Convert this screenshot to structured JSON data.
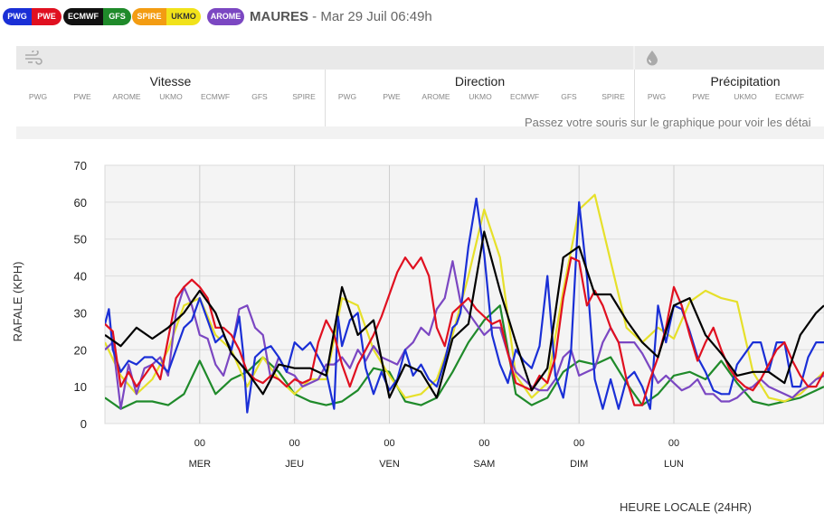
{
  "models": [
    {
      "id": "pwg-pwe",
      "parts": [
        {
          "label": "PWG",
          "bg": "#1a2fd6",
          "fg": "#ffffff"
        },
        {
          "label": "PWE",
          "bg": "#e01020",
          "fg": "#ffffff"
        }
      ]
    },
    {
      "id": "ecmwf-gfs",
      "parts": [
        {
          "label": "ECMWF",
          "bg": "#111111",
          "fg": "#ffffff"
        },
        {
          "label": "GFS",
          "bg": "#1f8a2a",
          "fg": "#ffffff"
        }
      ]
    },
    {
      "id": "spire-ukmo",
      "parts": [
        {
          "label": "SPIRE",
          "bg": "#f39c12",
          "fg": "#ffffff"
        },
        {
          "label": "UKMO",
          "bg": "#f1e21a",
          "fg": "#333333"
        }
      ]
    },
    {
      "id": "arome",
      "parts": [
        {
          "label": "AROME",
          "bg": "#7b47c2",
          "fg": "#ffffff"
        }
      ]
    }
  ],
  "location": {
    "name": "MAURES",
    "sep": " - ",
    "datetime": "Mar 29 Juil 06:49h"
  },
  "icons": {
    "wind": "wind-icon",
    "rain": "droplet-icon"
  },
  "groups": [
    {
      "title": "Vitesse",
      "cols": [
        "PWG",
        "PWE",
        "AROME",
        "UKMO",
        "ECMWF",
        "GFS",
        "SPIRE"
      ]
    },
    {
      "title": "Direction",
      "cols": [
        "PWG",
        "PWE",
        "AROME",
        "UKMO",
        "ECMWF",
        "GFS",
        "SPIRE"
      ]
    },
    {
      "title": "Précipitation",
      "cols": [
        "PWG",
        "PWE",
        "UKMO",
        "ECMWF"
      ]
    }
  ],
  "hint": "Passez votre souris sur le graphique pour voir les détai",
  "chart_data": {
    "type": "line",
    "ylabel": "RAFALE (KPH)",
    "xlabel": "HEURE LOCALE (24HR)",
    "ylim": [
      0,
      70
    ],
    "yticks": [
      0,
      10,
      20,
      30,
      40,
      50,
      60,
      70
    ],
    "xlim": [
      -24,
      158
    ],
    "days": [
      {
        "t": 0,
        "hour": "00",
        "day": "MER"
      },
      {
        "t": 24,
        "hour": "00",
        "day": "JEU"
      },
      {
        "t": 48,
        "hour": "00",
        "day": "VEN"
      },
      {
        "t": 72,
        "hour": "00",
        "day": "SAM"
      },
      {
        "t": 96,
        "hour": "00",
        "day": "DIM"
      },
      {
        "t": 120,
        "hour": "00",
        "day": "LUN"
      }
    ],
    "grid": true,
    "series": [
      {
        "name": "GFS",
        "color": "#1f8a2a",
        "x": [
          -24,
          -20,
          -16,
          -12,
          -8,
          -4,
          0,
          4,
          8,
          12,
          16,
          20,
          24,
          28,
          32,
          36,
          40,
          44,
          48,
          52,
          56,
          60,
          64,
          68,
          72,
          76,
          80,
          84,
          88,
          92,
          96,
          100,
          104,
          108,
          112,
          116,
          120,
          124,
          128,
          132,
          136,
          140,
          144,
          148,
          152,
          156,
          158
        ],
        "y": [
          7,
          4,
          6,
          6,
          5,
          8,
          17,
          8,
          12,
          14,
          18,
          14,
          8,
          6,
          5,
          6,
          9,
          15,
          14,
          6,
          5,
          7,
          14,
          22,
          28,
          32,
          8,
          5,
          7,
          14,
          17,
          16,
          18,
          11,
          5,
          8,
          13,
          14,
          12,
          17,
          11,
          6,
          5,
          6,
          7,
          9,
          10
        ]
      },
      {
        "name": "UKMO",
        "color": "#e6e02a",
        "x": [
          -24,
          -20,
          -16,
          -12,
          -8,
          -4,
          0,
          4,
          8,
          12,
          16,
          20,
          24,
          28,
          32,
          36,
          40,
          44,
          48,
          52,
          56,
          60,
          64,
          68,
          72,
          76,
          80,
          84,
          88,
          92,
          96,
          100,
          104,
          108,
          112,
          116,
          120,
          124,
          128,
          132,
          136,
          140,
          144,
          148,
          152,
          156,
          158
        ],
        "y": [
          22,
          13,
          8,
          12,
          20,
          32,
          34,
          24,
          20,
          10,
          18,
          12,
          8,
          12,
          12,
          34,
          32,
          20,
          13,
          7,
          8,
          12,
          24,
          40,
          58,
          45,
          13,
          7,
          11,
          36,
          58,
          62,
          44,
          26,
          22,
          26,
          23,
          33,
          36,
          34,
          33,
          14,
          7,
          6,
          8,
          12,
          14
        ]
      },
      {
        "name": "AROME",
        "color": "#7b47c2",
        "x": [
          -24,
          -22,
          -20,
          -18,
          -16,
          -14,
          -12,
          -10,
          -8,
          -6,
          -4,
          -2,
          0,
          2,
          4,
          6,
          8,
          10,
          12,
          14,
          16,
          18,
          20,
          22,
          24,
          26,
          28,
          30,
          32,
          34,
          36,
          38,
          40,
          42,
          44,
          46,
          48,
          50,
          52,
          54,
          56,
          58,
          60,
          62,
          64,
          66,
          68,
          70,
          72,
          74,
          76,
          78,
          80,
          82,
          84,
          86,
          88,
          90,
          92,
          94,
          96,
          98,
          100,
          102,
          104,
          106,
          108,
          110,
          112,
          114,
          116,
          118,
          120,
          122,
          124,
          126,
          128,
          130,
          132,
          134,
          136,
          138,
          140,
          142,
          144,
          146,
          148,
          150,
          152,
          154,
          156,
          158
        ],
        "y": [
          20,
          22,
          4,
          16,
          8,
          15,
          16,
          18,
          13,
          30,
          37,
          32,
          24,
          23,
          16,
          13,
          20,
          31,
          32,
          26,
          24,
          12,
          18,
          14,
          13,
          10,
          11,
          12,
          16,
          16,
          18,
          15,
          20,
          17,
          21,
          18,
          17,
          16,
          20,
          22,
          26,
          24,
          31,
          34,
          44,
          33,
          30,
          27,
          24,
          26,
          26,
          19,
          14,
          12,
          10,
          9,
          9,
          12,
          18,
          20,
          13,
          14,
          15,
          22,
          26,
          22,
          22,
          22,
          19,
          15,
          11,
          13,
          11,
          9,
          10,
          12,
          8,
          8,
          6,
          6,
          7,
          9,
          10,
          12,
          10,
          9,
          8,
          7,
          9,
          10,
          12,
          13
        ]
      },
      {
        "name": "PWG",
        "color": "#1a2fd6",
        "x": [
          -24,
          -23,
          -22,
          -20,
          -18,
          -16,
          -14,
          -12,
          -10,
          -8,
          -6,
          -4,
          -2,
          0,
          2,
          4,
          6,
          8,
          10,
          11,
          12,
          14,
          16,
          18,
          20,
          22,
          24,
          26,
          28,
          30,
          32,
          34,
          35,
          36,
          38,
          40,
          42,
          44,
          46,
          48,
          50,
          52,
          54,
          56,
          58,
          60,
          62,
          64,
          65,
          66,
          68,
          70,
          72,
          74,
          76,
          78,
          80,
          82,
          84,
          86,
          88,
          90,
          92,
          94,
          96,
          98,
          100,
          102,
          104,
          106,
          108,
          110,
          112,
          114,
          116,
          118,
          120,
          122,
          124,
          126,
          128,
          130,
          132,
          134,
          136,
          138,
          140,
          142,
          144,
          146,
          148,
          150,
          152,
          154,
          156,
          158
        ],
        "y": [
          27,
          31,
          20,
          14,
          17,
          16,
          18,
          18,
          16,
          14,
          20,
          26,
          28,
          34,
          28,
          22,
          24,
          20,
          29,
          19,
          3,
          18,
          20,
          21,
          18,
          14,
          22,
          20,
          22,
          18,
          14,
          4,
          29,
          21,
          28,
          30,
          15,
          8,
          14,
          9,
          12,
          20,
          13,
          16,
          12,
          10,
          17,
          26,
          27,
          30,
          48,
          61,
          46,
          24,
          16,
          11,
          20,
          17,
          15,
          21,
          40,
          13,
          7,
          20,
          60,
          40,
          12,
          4,
          12,
          4,
          12,
          14,
          10,
          4,
          32,
          22,
          32,
          31,
          25,
          18,
          14,
          9,
          8,
          8,
          16,
          19,
          22,
          22,
          14,
          22,
          22,
          10,
          10,
          18,
          22,
          22
        ]
      },
      {
        "name": "PWE",
        "color": "#e01020",
        "x": [
          -24,
          -22,
          -20,
          -18,
          -16,
          -14,
          -12,
          -10,
          -8,
          -6,
          -4,
          -2,
          0,
          2,
          4,
          6,
          8,
          10,
          12,
          14,
          16,
          18,
          20,
          22,
          24,
          26,
          28,
          30,
          32,
          34,
          36,
          38,
          40,
          42,
          44,
          46,
          48,
          50,
          52,
          54,
          56,
          58,
          60,
          62,
          64,
          66,
          68,
          70,
          72,
          74,
          76,
          78,
          80,
          82,
          84,
          86,
          88,
          90,
          92,
          94,
          96,
          98,
          100,
          102,
          104,
          106,
          108,
          110,
          112,
          114,
          116,
          118,
          120,
          122,
          124,
          126,
          128,
          130,
          132,
          134,
          136,
          138,
          140,
          142,
          144,
          146,
          148,
          150,
          152,
          154,
          156,
          158
        ],
        "y": [
          27,
          25,
          10,
          14,
          10,
          13,
          16,
          12,
          23,
          34,
          37,
          39,
          37,
          34,
          26,
          26,
          24,
          20,
          14,
          12,
          11,
          13,
          12,
          10,
          12,
          11,
          12,
          22,
          28,
          24,
          16,
          10,
          16,
          20,
          24,
          29,
          35,
          41,
          45,
          42,
          45,
          40,
          26,
          21,
          30,
          32,
          34,
          31,
          29,
          27,
          28,
          19,
          11,
          10,
          9,
          13,
          11,
          18,
          34,
          45,
          44,
          32,
          36,
          32,
          26,
          22,
          12,
          5,
          5,
          12,
          18,
          26,
          37,
          32,
          24,
          17,
          22,
          26,
          20,
          15,
          12,
          10,
          9,
          12,
          16,
          20,
          22,
          17,
          13,
          10,
          10,
          14
        ]
      },
      {
        "name": "ECMWF",
        "color": "#000000",
        "x": [
          -24,
          -20,
          -16,
          -12,
          -8,
          -4,
          0,
          4,
          8,
          12,
          16,
          20,
          24,
          28,
          32,
          36,
          40,
          44,
          48,
          52,
          56,
          60,
          64,
          68,
          72,
          76,
          80,
          84,
          88,
          92,
          96,
          100,
          104,
          108,
          112,
          116,
          120,
          124,
          128,
          132,
          136,
          140,
          144,
          148,
          152,
          156,
          158
        ],
        "y": [
          24,
          21,
          26,
          23,
          26,
          30,
          36,
          30,
          19,
          14,
          8,
          16,
          15,
          15,
          13,
          37,
          24,
          28,
          7,
          16,
          14,
          7,
          23,
          27,
          52,
          36,
          22,
          9,
          15,
          45,
          48,
          35,
          35,
          28,
          22,
          18,
          32,
          34,
          24,
          19,
          13,
          14,
          14,
          11,
          24,
          30,
          32
        ]
      }
    ]
  }
}
